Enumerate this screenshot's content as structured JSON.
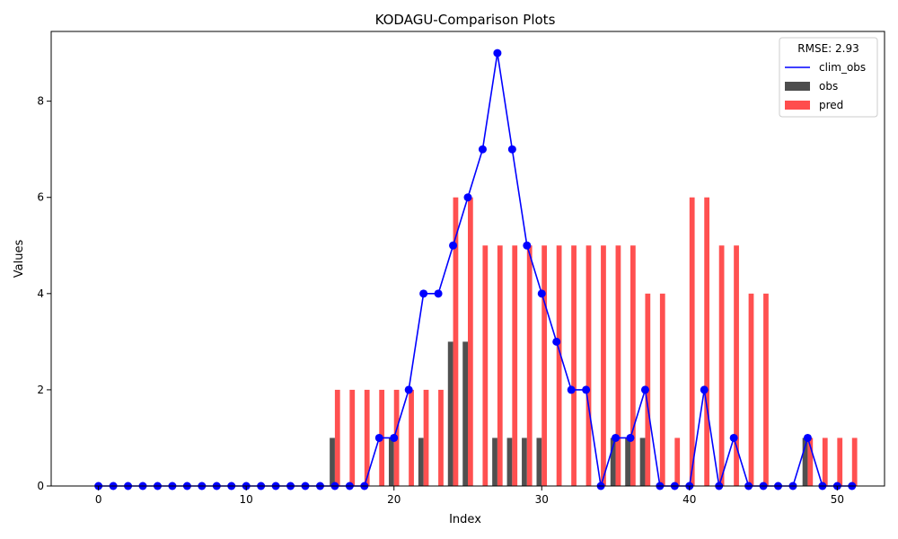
{
  "chart_data": {
    "type": "bar",
    "title": "KODAGU-Comparison Plots",
    "xlabel": "Index",
    "ylabel": "Values",
    "xlim": [
      -3.2,
      53.2
    ],
    "ylim": [
      0,
      9.45
    ],
    "xticks": [
      0,
      10,
      20,
      30,
      40,
      50
    ],
    "yticks": [
      0,
      2,
      4,
      6,
      8
    ],
    "grid": false,
    "legend": {
      "title": "RMSE: 2.93",
      "placement": "top-right"
    },
    "x": [
      0,
      1,
      2,
      3,
      4,
      5,
      6,
      7,
      8,
      9,
      10,
      11,
      12,
      13,
      14,
      15,
      16,
      17,
      18,
      19,
      20,
      21,
      22,
      23,
      24,
      25,
      26,
      27,
      28,
      29,
      30,
      31,
      32,
      33,
      34,
      35,
      36,
      37,
      38,
      39,
      40,
      41,
      42,
      43,
      44,
      45,
      46,
      47,
      48,
      49,
      50,
      51
    ],
    "series": [
      {
        "name": "clim_obs",
        "kind": "line",
        "color": "#0000ff",
        "values": [
          0,
          0,
          0,
          0,
          0,
          0,
          0,
          0,
          0,
          0,
          0,
          0,
          0,
          0,
          0,
          0,
          0,
          0,
          0,
          1,
          1,
          2,
          4,
          4,
          5,
          6,
          7,
          9,
          7,
          5,
          4,
          3,
          2,
          2,
          0,
          1,
          1,
          2,
          0,
          0,
          0,
          2,
          0,
          1,
          0,
          0,
          0,
          0,
          1,
          0,
          0,
          0
        ]
      },
      {
        "name": "obs",
        "kind": "bar",
        "color": "#4d4d4d",
        "values": [
          0,
          0,
          0,
          0,
          0,
          0,
          0,
          0,
          0,
          0,
          0,
          0,
          0,
          0,
          0,
          0,
          1,
          0,
          0,
          0,
          1,
          0,
          1,
          0,
          3,
          3,
          0,
          1,
          1,
          1,
          1,
          0,
          0,
          0,
          0,
          1,
          1,
          1,
          0,
          0,
          0,
          0,
          0,
          0,
          0,
          0,
          0,
          0,
          1,
          0,
          0,
          0
        ]
      },
      {
        "name": "pred",
        "kind": "bar",
        "color": "#ff4d4d",
        "values": [
          0,
          0,
          0,
          0,
          0,
          0,
          0,
          0,
          0,
          0,
          0,
          0,
          0,
          0,
          0,
          0,
          2,
          2,
          2,
          2,
          2,
          2,
          2,
          2,
          6,
          6,
          5,
          5,
          5,
          5,
          5,
          5,
          5,
          5,
          5,
          5,
          5,
          4,
          4,
          1,
          6,
          6,
          5,
          5,
          4,
          4,
          0,
          0,
          1,
          1,
          1,
          1
        ]
      }
    ]
  }
}
